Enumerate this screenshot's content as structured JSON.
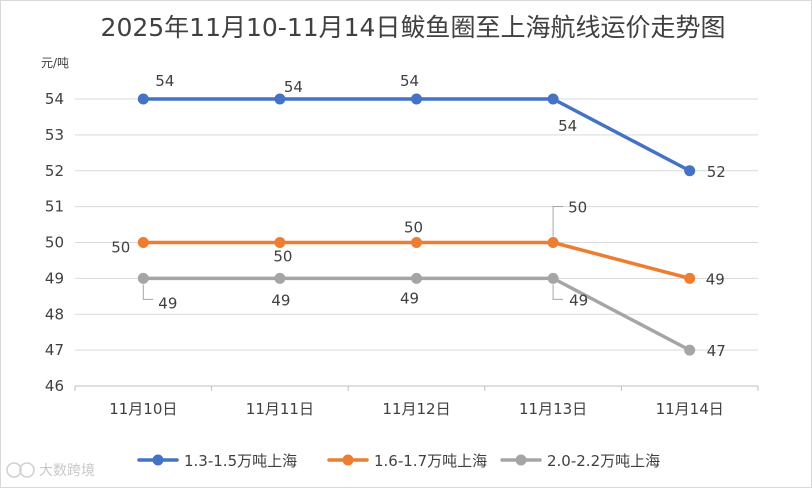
{
  "chart_data": {
    "type": "line",
    "title": "2025年11月10-11月14日鲅鱼圈至上海航线运价走势图",
    "ylabel": "元/吨",
    "xlabel": "",
    "categories": [
      "11月10日",
      "11月11日",
      "11月12日",
      "11月13日",
      "11月14日"
    ],
    "ylim": [
      46,
      54
    ],
    "yticks": [
      46,
      47,
      48,
      49,
      50,
      51,
      52,
      53,
      54
    ],
    "grid": true,
    "legend_position": "bottom",
    "series": [
      {
        "name": "1.3-1.5万吨上海",
        "color": "#4472c4",
        "values": [
          54,
          54,
          54,
          54,
          52
        ]
      },
      {
        "name": "1.6-1.7万吨上海",
        "color": "#ed7d31",
        "values": [
          50,
          50,
          50,
          50,
          49
        ]
      },
      {
        "name": "2.0-2.2万吨上海",
        "color": "#a5a5a5",
        "values": [
          49,
          49,
          49,
          49,
          47
        ]
      }
    ]
  },
  "watermark": {
    "text": "大数跨境"
  }
}
